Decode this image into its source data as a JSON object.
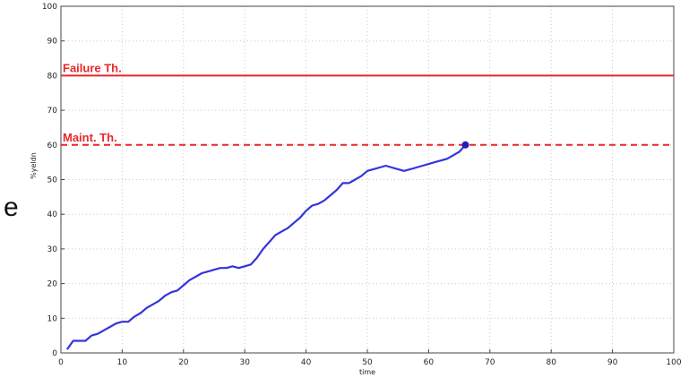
{
  "stray_text": "e",
  "chart_data": {
    "type": "line",
    "xlabel": "time",
    "ylabel": "%yeldn",
    "xlim": [
      0,
      100
    ],
    "ylim": [
      0,
      100
    ],
    "x_ticks": [
      "0",
      "10",
      "20",
      "30",
      "40",
      "50",
      "60",
      "70",
      "80",
      "90",
      "100"
    ],
    "y_ticks": [
      "0",
      "10",
      "20",
      "30",
      "40",
      "50",
      "60",
      "70",
      "80",
      "90",
      "100"
    ],
    "grid": true,
    "thresholds": [
      {
        "label": "Failure Th.",
        "value": 80,
        "style": "solid",
        "color": "#e8272a"
      },
      {
        "label": "Maint. Th.",
        "value": 60,
        "style": "dashed",
        "color": "#e8272a"
      }
    ],
    "series": [
      {
        "color": "#3333dd",
        "x": [
          1,
          2,
          4,
          5,
          6,
          7,
          8,
          9,
          10,
          11,
          12,
          13,
          14,
          15,
          16,
          17,
          18,
          19,
          20,
          21,
          22,
          23,
          24,
          25,
          26,
          27,
          28,
          29,
          30,
          31,
          32,
          33,
          34,
          35,
          36,
          37,
          38,
          39,
          40,
          41,
          42,
          43,
          44,
          45,
          46,
          47,
          48,
          49,
          50,
          51,
          52,
          53,
          54,
          55,
          56,
          57,
          58,
          59,
          60,
          61,
          62,
          63,
          64,
          65,
          66
        ],
        "y": [
          1,
          3.5,
          3.5,
          5,
          5.5,
          6.5,
          7.5,
          8.5,
          9,
          9,
          10.5,
          11.5,
          13,
          14,
          15,
          16.5,
          17.5,
          18,
          19.5,
          21,
          22,
          23,
          23.5,
          24,
          24.5,
          24.5,
          25,
          24.5,
          25,
          25.5,
          27.5,
          30,
          32,
          34,
          35,
          36,
          37.5,
          39,
          41,
          42.5,
          43,
          44,
          45.5,
          47,
          49,
          49,
          50,
          51,
          52.5,
          53,
          53.5,
          54,
          53.5,
          53,
          52.5,
          53,
          53.5,
          54,
          54.5,
          55,
          55.5,
          56,
          57,
          58,
          60
        ],
        "end_marker": true
      }
    ]
  }
}
